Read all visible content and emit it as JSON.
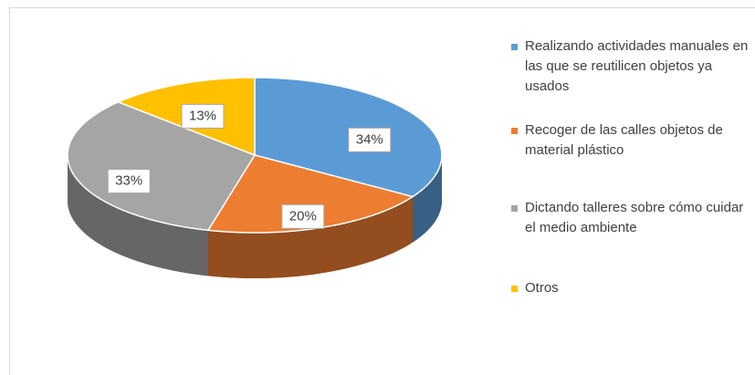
{
  "chart_data": {
    "type": "pie3d",
    "categories": [
      "Realizando actividades manuales en las que se reutilicen objetos ya usados",
      "Recoger de las calles objetos de material plástico",
      "Dictando talleres sobre cómo cuidar el medio ambiente",
      "Otros"
    ],
    "values": [
      34,
      20,
      33,
      13
    ],
    "value_labels": [
      "34%",
      "20%",
      "33%",
      "13%"
    ],
    "colors": [
      "#5b9bd5",
      "#ed7d31",
      "#a5a5a5",
      "#ffc000"
    ],
    "legend": "right"
  }
}
